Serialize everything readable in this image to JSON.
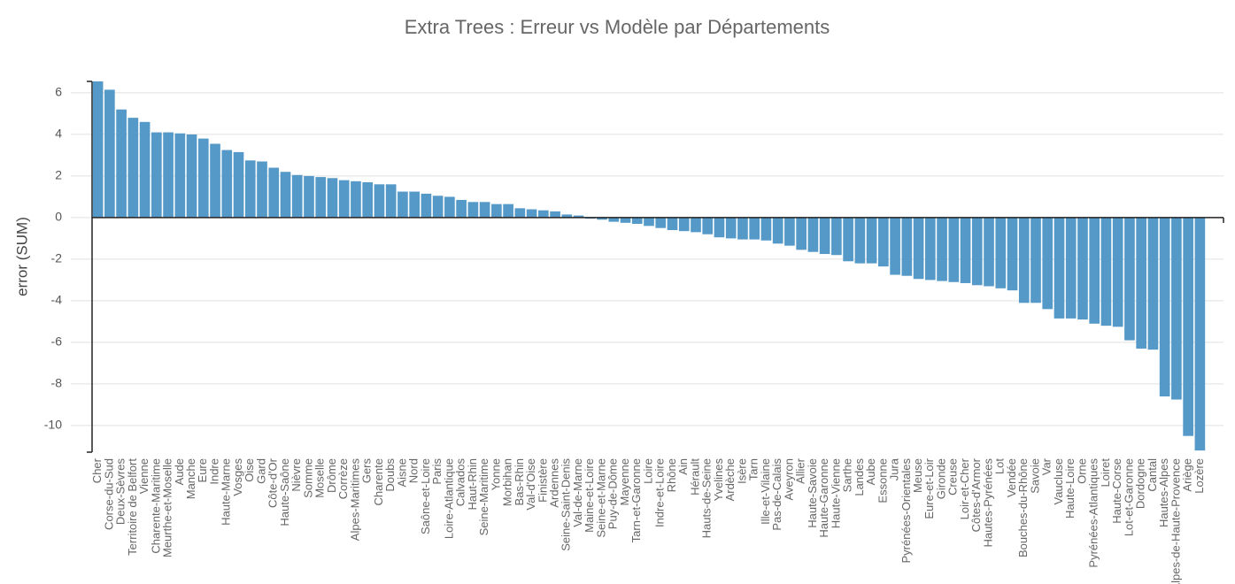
{
  "chart_data": {
    "type": "bar",
    "title": "Extra Trees  : Erreur vs Modèle par Départements",
    "y_label": "error (SUM)",
    "color": "#5499c7",
    "grid": true,
    "ylim": [
      -11.28,
      6.55
    ],
    "yticks": [
      -10,
      -8,
      -6,
      -4,
      -2,
      0,
      2,
      4,
      6
    ],
    "categories": [
      "Cher",
      "Corse-du-Sud",
      "Deux-Sèvres",
      "Territoire de Belfort",
      "Vienne",
      "Charente-Maritime",
      "Meurthe-et-Moselle",
      "Aude",
      "Manche",
      "Eure",
      "Indre",
      "Haute-Marne",
      "Vosges",
      "Oise",
      "Gard",
      "Côte-d'Or",
      "Haute-Saône",
      "Nièvre",
      "Somme",
      "Moselle",
      "Drôme",
      "Corrèze",
      "Alpes-Maritimes",
      "Gers",
      "Charente",
      "Doubs",
      "Aisne",
      "Nord",
      "Saône-et-Loire",
      "Paris",
      "Loire-Atlantique",
      "Calvados",
      "Haut-Rhin",
      "Seine-Maritime",
      "Yonne",
      "Morbihan",
      "Bas-Rhin",
      "Val-d'Oise",
      "Finistère",
      "Ardennes",
      "Seine-Saint-Denis",
      "Val-de-Marne",
      "Maine-et-Loire",
      "Seine-et-Marne",
      "Puy-de-Dôme",
      "Mayenne",
      "Tarn-et-Garonne",
      "Loire",
      "Indre-et-Loire",
      "Rhône",
      "Ain",
      "Hérault",
      "Hauts-de-Seine",
      "Yvelines",
      "Ardèche",
      "Isère",
      "Tarn",
      "Ille-et-Vilaine",
      "Pas-de-Calais",
      "Aveyron",
      "Allier",
      "Haute-Savoie",
      "Haute-Garonne",
      "Haute-Vienne",
      "Sarthe",
      "Landes",
      "Aube",
      "Essonne",
      "Jura",
      "Pyrénées-Orientales",
      "Meuse",
      "Eure-et-Loir",
      "Gironde",
      "Creuse",
      "Loir-et-Cher",
      "Côtes-d'Armor",
      "Hautes-Pyrénées",
      "Lot",
      "Vendée",
      "Bouches-du-Rhône",
      "Savoie",
      "Var",
      "Vaucluse",
      "Haute-Loire",
      "Orne",
      "Pyrénées-Atlantiques",
      "Loiret",
      "Haute-Corse",
      "Lot-et-Garonne",
      "Dordogne",
      "Cantal",
      "Hautes-Alpes",
      "Alpes-de-Haute-Provence",
      "Ariège",
      "Lozère"
    ],
    "values": [
      6.55,
      6.15,
      5.2,
      4.8,
      4.6,
      4.1,
      4.1,
      4.05,
      4.0,
      3.8,
      3.55,
      3.25,
      3.15,
      2.75,
      2.7,
      2.4,
      2.2,
      2.05,
      2.0,
      1.95,
      1.9,
      1.8,
      1.75,
      1.7,
      1.6,
      1.6,
      1.25,
      1.25,
      1.15,
      1.05,
      1.0,
      0.85,
      0.75,
      0.75,
      0.65,
      0.65,
      0.45,
      0.4,
      0.35,
      0.3,
      0.15,
      0.1,
      -0.05,
      -0.1,
      -0.2,
      -0.25,
      -0.3,
      -0.4,
      -0.5,
      -0.6,
      -0.65,
      -0.7,
      -0.8,
      -0.95,
      -1.0,
      -1.05,
      -1.05,
      -1.1,
      -1.25,
      -1.35,
      -1.55,
      -1.65,
      -1.75,
      -1.8,
      -2.1,
      -2.2,
      -2.2,
      -2.35,
      -2.75,
      -2.8,
      -2.95,
      -3.0,
      -3.05,
      -3.1,
      -3.15,
      -3.25,
      -3.3,
      -3.4,
      -3.5,
      -4.1,
      -4.1,
      -4.4,
      -4.85,
      -4.85,
      -4.9,
      -5.1,
      -5.2,
      -5.25,
      -5.9,
      -6.3,
      -6.35,
      -8.6,
      -8.75,
      -10.5,
      -11.2
    ]
  }
}
